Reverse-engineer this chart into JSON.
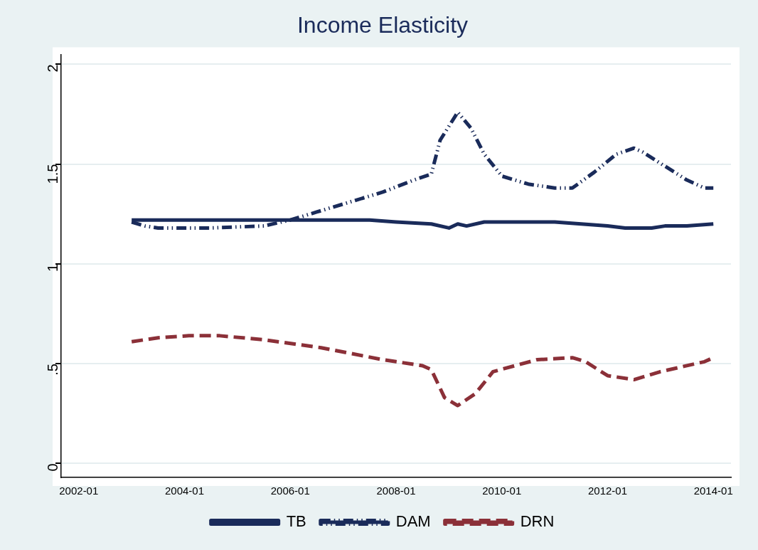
{
  "chart_data": {
    "type": "line",
    "title": "Income Elasticity",
    "legend": "bottom",
    "grid": "y",
    "marker": "none",
    "xlim": [
      "2001-09",
      "2014-05"
    ],
    "xticks": [
      "2002-01",
      "2004-01",
      "2006-01",
      "2008-01",
      "2010-01",
      "2012-01",
      "2014-01"
    ],
    "ylim": [
      -0.07,
      2.05
    ],
    "yticks": [
      0,
      {
        "value": 0.5,
        "label": ".5"
      },
      1,
      1.5,
      2
    ],
    "series": [
      {
        "name": "TB",
        "color": "#1a2b5a",
        "line_style": "solid",
        "x": [
          "2003-01",
          "2004-07",
          "2006-01",
          "2007-07",
          "2008-01",
          "2008-09",
          "2009-01",
          "2009-03",
          "2009-05",
          "2009-09",
          "2010-01",
          "2011-01",
          "2011-07",
          "2012-01",
          "2012-05",
          "2012-11",
          "2013-02",
          "2013-07",
          "2014-01"
        ],
        "values": [
          1.22,
          1.22,
          1.22,
          1.22,
          1.21,
          1.2,
          1.18,
          1.2,
          1.19,
          1.21,
          1.21,
          1.21,
          1.2,
          1.19,
          1.18,
          1.18,
          1.19,
          1.19,
          1.2
        ]
      },
      {
        "name": "DAM",
        "color": "#1a2b5a",
        "line_style": "dashdot",
        "x": [
          "2003-01",
          "2003-04",
          "2003-07",
          "2004-07",
          "2005-07",
          "2006-01",
          "2006-07",
          "2007-01",
          "2007-10",
          "2008-05",
          "2008-09",
          "2008-11",
          "2009-03",
          "2009-06",
          "2009-09",
          "2010-01",
          "2010-07",
          "2011-01",
          "2011-05",
          "2011-10",
          "2012-03",
          "2012-07",
          "2012-09",
          "2013-02",
          "2013-07",
          "2013-11",
          "2014-01"
        ],
        "values": [
          1.21,
          1.19,
          1.18,
          1.18,
          1.19,
          1.22,
          1.26,
          1.3,
          1.36,
          1.42,
          1.45,
          1.62,
          1.76,
          1.68,
          1.55,
          1.44,
          1.4,
          1.38,
          1.38,
          1.46,
          1.55,
          1.58,
          1.56,
          1.49,
          1.42,
          1.38,
          1.38
        ]
      },
      {
        "name": "DRN",
        "color": "#8b3038",
        "line_style": "dashed",
        "x": [
          "2003-01",
          "2003-07",
          "2004-02",
          "2004-09",
          "2005-07",
          "2006-08",
          "2007-10",
          "2008-01",
          "2008-07",
          "2008-09",
          "2008-12",
          "2009-03",
          "2009-07",
          "2009-11",
          "2010-04",
          "2010-09",
          "2011-05",
          "2011-08",
          "2012-01",
          "2012-07",
          "2013-01",
          "2013-11",
          "2014-01"
        ],
        "values": [
          0.61,
          0.63,
          0.64,
          0.64,
          0.62,
          0.58,
          0.52,
          0.51,
          0.49,
          0.47,
          0.33,
          0.29,
          0.35,
          0.46,
          0.49,
          0.52,
          0.53,
          0.51,
          0.44,
          0.42,
          0.46,
          0.51,
          0.53
        ]
      }
    ]
  }
}
